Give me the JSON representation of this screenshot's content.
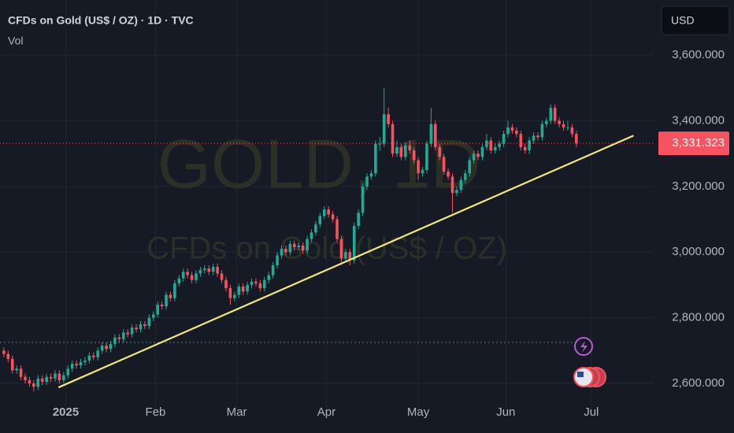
{
  "chart_data": {
    "type": "candlestick",
    "title": "CFDs on Gold (US$ / OZ) · 1D · TVC",
    "indicator": "Vol",
    "currency": "USD",
    "watermark": [
      "GOLD, 1D",
      "CFDs on Gold (US$ / OZ)"
    ],
    "up_color": "#22ab94",
    "down_color": "#f7525f",
    "grid": true,
    "ylim": [
      2521,
      3768
    ],
    "yticks": [
      {
        "value": 2600,
        "label": "2,600.000"
      },
      {
        "value": 2800,
        "label": "2,800.000"
      },
      {
        "value": 3000,
        "label": "3,000.000"
      },
      {
        "value": 3200,
        "label": "3,200.000"
      },
      {
        "value": 3400,
        "label": "3,400.000"
      },
      {
        "value": 3600,
        "label": "3,600.000"
      }
    ],
    "xlim": [
      -0.9,
      152.1
    ],
    "xticks": [
      {
        "value": 14.5,
        "label": "2025"
      },
      {
        "value": 35.5,
        "label": "Feb"
      },
      {
        "value": 54.5,
        "label": "Mar"
      },
      {
        "value": 75.5,
        "label": "Apr"
      },
      {
        "value": 97,
        "label": "May"
      },
      {
        "value": 117.5,
        "label": "Jun"
      },
      {
        "value": 137.5,
        "label": "Jul"
      }
    ],
    "last_price": {
      "value": 3331.323,
      "label": "3,331.323"
    },
    "trendline": {
      "color": "#f5eb6e",
      "x": [
        12.8,
        147.4
      ],
      "y": [
        2588,
        3355
      ]
    },
    "open": [
      2700,
      2690,
      2675,
      2640,
      2645,
      2620,
      2610,
      2600,
      2590,
      2615,
      2605,
      2620,
      2615,
      2630,
      2610,
      2625,
      2645,
      2660,
      2655,
      2665,
      2670,
      2685,
      2680,
      2700,
      2715,
      2705,
      2720,
      2740,
      2735,
      2755,
      2750,
      2770,
      2765,
      2780,
      2775,
      2800,
      2810,
      2840,
      2835,
      2870,
      2860,
      2905,
      2920,
      2940,
      2930,
      2915,
      2935,
      2945,
      2950,
      2940,
      2955,
      2935,
      2915,
      2890,
      2860,
      2870,
      2895,
      2880,
      2900,
      2910,
      2905,
      2890,
      2915,
      2930,
      2960,
      2990,
      3010,
      3000,
      3025,
      3015,
      3020,
      3005,
      3040,
      3060,
      3085,
      3110,
      3130,
      3115,
      3100,
      3040,
      2980,
      3000,
      2975,
      3080,
      3120,
      3200,
      3230,
      3240,
      3330,
      3330,
      3420,
      3390,
      3300,
      3320,
      3290,
      3325,
      3310,
      3280,
      3240,
      3250,
      3330,
      3390,
      3320,
      3290,
      3245,
      3230,
      3180,
      3190,
      3220,
      3240,
      3280,
      3300,
      3290,
      3320,
      3340,
      3310,
      3320,
      3330,
      3360,
      3380,
      3370,
      3360,
      3320,
      3310,
      3340,
      3355,
      3350,
      3390,
      3400,
      3440,
      3400,
      3390,
      3380,
      3380,
      3360
    ],
    "high": [
      2710,
      2700,
      2685,
      2655,
      2655,
      2630,
      2620,
      2610,
      2625,
      2625,
      2630,
      2630,
      2640,
      2640,
      2635,
      2655,
      2670,
      2670,
      2675,
      2680,
      2695,
      2695,
      2710,
      2725,
      2725,
      2730,
      2750,
      2750,
      2765,
      2765,
      2780,
      2780,
      2790,
      2790,
      2810,
      2820,
      2850,
      2850,
      2880,
      2880,
      2915,
      2930,
      2950,
      2950,
      2940,
      2945,
      2955,
      2960,
      2960,
      2965,
      2965,
      2945,
      2925,
      2900,
      2880,
      2905,
      2905,
      2910,
      2920,
      2920,
      2915,
      2925,
      2940,
      2970,
      3000,
      3020,
      3020,
      3035,
      3035,
      3030,
      3030,
      3050,
      3070,
      3095,
      3120,
      3140,
      3140,
      3125,
      3110,
      3050,
      3010,
      3010,
      3090,
      3130,
      3210,
      3240,
      3250,
      3340,
      3350,
      3500,
      3440,
      3400,
      3340,
      3330,
      3335,
      3340,
      3320,
      3290,
      3260,
      3340,
      3440,
      3400,
      3330,
      3300,
      3255,
      3240,
      3200,
      3230,
      3250,
      3290,
      3310,
      3310,
      3330,
      3360,
      3350,
      3330,
      3340,
      3370,
      3400,
      3390,
      3380,
      3370,
      3330,
      3350,
      3365,
      3365,
      3400,
      3410,
      3450,
      3450,
      3410,
      3400,
      3400,
      3390,
      3370
    ],
    "low": [
      2680,
      2665,
      2630,
      2630,
      2610,
      2600,
      2590,
      2575,
      2580,
      2595,
      2595,
      2605,
      2605,
      2600,
      2600,
      2615,
      2635,
      2645,
      2645,
      2655,
      2660,
      2670,
      2670,
      2690,
      2695,
      2695,
      2710,
      2725,
      2725,
      2740,
      2740,
      2755,
      2755,
      2765,
      2765,
      2790,
      2800,
      2825,
      2825,
      2850,
      2850,
      2895,
      2910,
      2920,
      2905,
      2905,
      2925,
      2935,
      2930,
      2930,
      2925,
      2905,
      2880,
      2840,
      2850,
      2860,
      2870,
      2870,
      2890,
      2895,
      2880,
      2880,
      2905,
      2920,
      2950,
      2980,
      2990,
      2990,
      3005,
      3005,
      2995,
      2995,
      3030,
      3050,
      3075,
      3100,
      3105,
      3090,
      3030,
      2960,
      2970,
      2960,
      2965,
      3070,
      3110,
      3190,
      3220,
      3230,
      3310,
      3320,
      3380,
      3290,
      3290,
      3280,
      3280,
      3300,
      3270,
      3220,
      3230,
      3240,
      3320,
      3310,
      3280,
      3235,
      3220,
      3120,
      3170,
      3180,
      3210,
      3230,
      3270,
      3280,
      3280,
      3310,
      3300,
      3300,
      3310,
      3320,
      3350,
      3360,
      3350,
      3310,
      3300,
      3300,
      3330,
      3340,
      3340,
      3380,
      3390,
      3390,
      3380,
      3370,
      3370,
      3350,
      3320
    ],
    "close": [
      2690,
      2675,
      2640,
      2645,
      2620,
      2610,
      2600,
      2590,
      2615,
      2605,
      2620,
      2615,
      2630,
      2610,
      2625,
      2645,
      2660,
      2655,
      2665,
      2670,
      2685,
      2680,
      2700,
      2715,
      2705,
      2720,
      2740,
      2735,
      2755,
      2750,
      2770,
      2765,
      2780,
      2775,
      2800,
      2810,
      2840,
      2835,
      2870,
      2860,
      2905,
      2920,
      2940,
      2930,
      2915,
      2935,
      2945,
      2950,
      2940,
      2955,
      2935,
      2915,
      2890,
      2860,
      2870,
      2895,
      2880,
      2900,
      2910,
      2905,
      2890,
      2915,
      2930,
      2960,
      2990,
      3010,
      3000,
      3025,
      3015,
      3020,
      3005,
      3040,
      3060,
      3085,
      3110,
      3130,
      3115,
      3100,
      3040,
      2980,
      3000,
      2975,
      3080,
      3120,
      3200,
      3230,
      3240,
      3330,
      3330,
      3420,
      3390,
      3300,
      3320,
      3290,
      3325,
      3310,
      3280,
      3240,
      3250,
      3330,
      3390,
      3320,
      3290,
      3245,
      3230,
      3180,
      3190,
      3220,
      3240,
      3280,
      3300,
      3290,
      3320,
      3340,
      3310,
      3320,
      3330,
      3360,
      3380,
      3370,
      3360,
      3320,
      3310,
      3340,
      3355,
      3350,
      3390,
      3400,
      3440,
      3400,
      3390,
      3380,
      3380,
      3360,
      3331.323
    ]
  }
}
